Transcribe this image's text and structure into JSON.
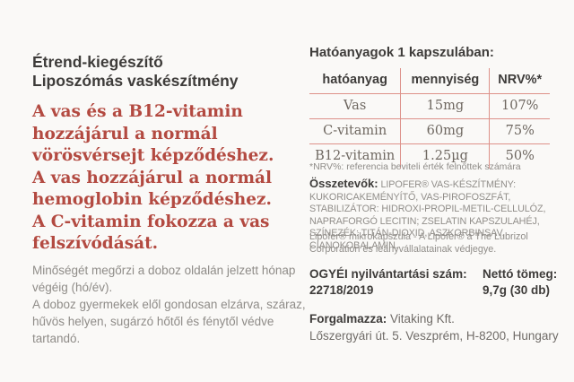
{
  "colors": {
    "bg": "#faf9f7",
    "dark": "#3e3c3a",
    "accent": "#b34a41",
    "line": "#dd9189",
    "gray": "#8f8c88"
  },
  "left": {
    "title_line1": "Étrend-kiegészítő",
    "title_line2": "Liposzómás vaskészítmény",
    "claims": [
      "A vas és a B12-vitamin hozzájárul a normál vörösvérsejt képződéshez.",
      "A vas hozzájárul a normál hemoglobin képződéshez.",
      "A C-vitamin fokozza a vas felszívódását."
    ],
    "storage_line1": "Minőségét megőrzi a doboz oldalán jelzett hónap végéig (hó/év).",
    "storage_line2": "A doboz gyermekek elől gondosan elzárva, száraz, hűvös helyen, sugárzó hőtől és fénytől védve tartandó."
  },
  "right": {
    "table_title": "Hatóanyagok 1 kapszulában:",
    "table": {
      "headers": [
        "hatóanyag",
        "mennyiség",
        "NRV%*"
      ],
      "rows": [
        [
          "Vas",
          "15mg",
          "107%"
        ],
        [
          "C-vitamin",
          "60mg",
          "75%"
        ],
        [
          "B12-vitamin",
          "1.25µg",
          "50%"
        ]
      ]
    },
    "footnote": "*NRV%: referencia beviteli érték felnőttek számára",
    "ingredients_label": "Összetevők:",
    "ingredients_text": "LIPOFER® VAS-KÉSZÍTMÉNY: KUKORICAKEMÉNYÍTŐ, VAS-PIROFOSZFÁT, STABILIZÁTOR: HIDROXI-PROPIL-METIL-CELLULÓZ, NAPRAFORGÓ LECITIN; ZSELATIN KAPSZULAHÉJ, SZÍNEZÉK: TITÁN-DIOXID, ASZKORBINSAV, CIANOKOBALAMIN.",
    "trademark_note": "Lipofer® mikrokapszula - A Lipofer® a The Lubrizol Corporation és leányvállalatainak védjegye.",
    "registration_label": "OGYÉI nyilvántartási szám:",
    "registration_number": "22718/2019",
    "net_weight_label": "Nettó tömeg:",
    "net_weight_value": "9,7g (30 db)",
    "distributor_label": "Forgalmazza:",
    "distributor_name": "Vitaking Kft.",
    "distributor_address": "Lőszergyári út. 5. Veszprém, H-8200, Hungary"
  }
}
